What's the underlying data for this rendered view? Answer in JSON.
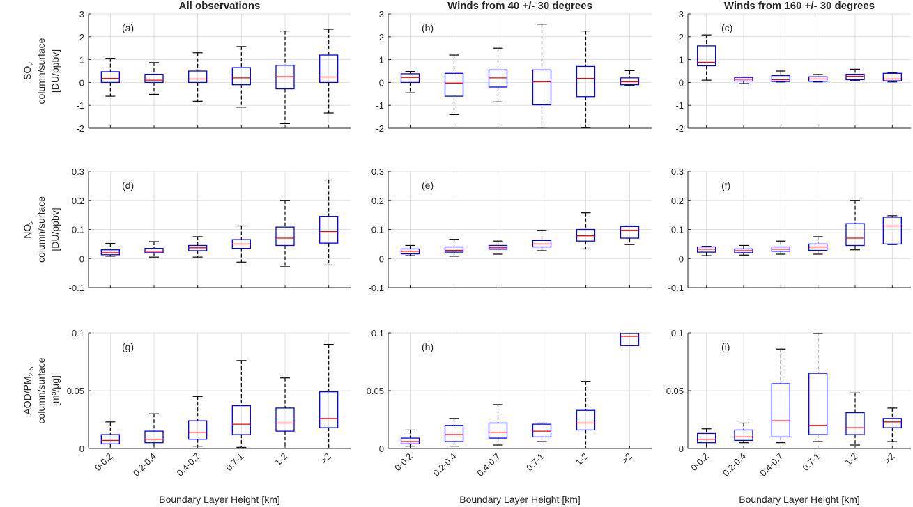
{
  "x_categories": [
    "0-0.2",
    "0.2-0.4",
    "0.4-0.7",
    "0.7-1",
    "1-2",
    ">2"
  ],
  "xlabel": "Boundary Layer Height [km]",
  "column_titles": [
    "All observations",
    "Winds from 40 +/- 30 degrees",
    "Winds from 160 +/- 30 degrees"
  ],
  "row_ylabels": [
    {
      "main": "SO",
      "sub": "2",
      "unit_line": "column/surface",
      "unit2": "[DU/ppbv]"
    },
    {
      "main": "NO",
      "sub": "2",
      "unit_line": "column/surface",
      "unit2": "[DU/ppbv]"
    },
    {
      "main": "AOD/PM",
      "sub": "2.5",
      "unit_line": "column/surface",
      "unit2": "[m³/μg]"
    }
  ],
  "row_yticks": [
    {
      "values": [
        -2,
        -1,
        0,
        1,
        2,
        3
      ],
      "labels": [
        "-2",
        "-1",
        "0",
        "1",
        "2",
        "3"
      ],
      "ylim": [
        -2,
        3
      ]
    },
    {
      "values": [
        -0.1,
        0,
        0.1,
        0.2,
        0.3
      ],
      "labels": [
        "-0.1",
        "0",
        "0.1",
        "0.2",
        "0.3"
      ],
      "ylim": [
        -0.1,
        0.3
      ]
    },
    {
      "values": [
        0,
        0.05,
        0.1
      ],
      "labels": [
        "0",
        "0.05",
        "0.1"
      ],
      "ylim": [
        0,
        0.1
      ]
    }
  ],
  "colors": {
    "box": "#0000ff",
    "median": "#ff0000",
    "whisker": "#000000",
    "grid": "#e0e0e0",
    "axis": "#262626"
  },
  "chart_data": [
    {
      "panel": "(a)",
      "type": "box",
      "title": "All observations",
      "ylim": [
        -2,
        3
      ],
      "categories": [
        "0-0.2",
        "0.2-0.4",
        "0.4-0.7",
        "0.7-1",
        "1-2",
        ">2"
      ],
      "boxes": [
        {
          "min": -0.6,
          "q1": 0.0,
          "median": 0.18,
          "q3": 0.47,
          "max": 1.06
        },
        {
          "min": -0.52,
          "q1": 0.0,
          "median": 0.1,
          "q3": 0.36,
          "max": 0.87
        },
        {
          "min": -0.82,
          "q1": 0.0,
          "median": 0.15,
          "q3": 0.5,
          "max": 1.3
        },
        {
          "min": -1.08,
          "q1": -0.1,
          "median": 0.2,
          "q3": 0.65,
          "max": 1.57
        },
        {
          "min": -1.8,
          "q1": -0.28,
          "median": 0.25,
          "q3": 0.75,
          "max": 2.25
        },
        {
          "min": -1.33,
          "q1": 0.0,
          "median": 0.24,
          "q3": 1.2,
          "max": 2.33
        }
      ]
    },
    {
      "panel": "(b)",
      "type": "box",
      "title": "Winds from 40 +/- 30 degrees",
      "ylim": [
        -2,
        3
      ],
      "categories": [
        "0-0.2",
        "0.2-0.4",
        "0.4-0.7",
        "0.7-1",
        "1-2",
        ">2"
      ],
      "boxes": [
        {
          "min": -0.45,
          "q1": 0.0,
          "median": 0.22,
          "q3": 0.38,
          "max": 0.48
        },
        {
          "min": -1.4,
          "q1": -0.6,
          "median": -0.03,
          "q3": 0.4,
          "max": 1.2
        },
        {
          "min": -0.85,
          "q1": -0.2,
          "median": 0.2,
          "q3": 0.55,
          "max": 1.5
        },
        {
          "min": -2.0,
          "q1": -0.98,
          "median": 0.03,
          "q3": 0.55,
          "max": 2.55
        },
        {
          "min": -1.97,
          "q1": -0.62,
          "median": 0.18,
          "q3": 0.7,
          "max": 2.25
        },
        {
          "min": -0.12,
          "q1": -0.1,
          "median": 0.03,
          "q3": 0.2,
          "max": 0.52
        }
      ]
    },
    {
      "panel": "(c)",
      "type": "box",
      "title": "Winds from 160 +/- 30 degrees",
      "ylim": [
        -2,
        3
      ],
      "categories": [
        "0-0.2",
        "0.2-0.4",
        "0.4-0.7",
        "0.7-1",
        "1-2",
        ">2"
      ],
      "boxes": [
        {
          "min": 0.1,
          "q1": 0.73,
          "median": 0.88,
          "q3": 1.6,
          "max": 2.08
        },
        {
          "min": -0.05,
          "q1": 0.06,
          "median": 0.14,
          "q3": 0.22,
          "max": 0.24
        },
        {
          "min": 0.02,
          "q1": 0.04,
          "median": 0.12,
          "q3": 0.3,
          "max": 0.5
        },
        {
          "min": 0.02,
          "q1": 0.05,
          "median": 0.15,
          "q3": 0.25,
          "max": 0.35
        },
        {
          "min": 0.08,
          "q1": 0.12,
          "median": 0.27,
          "q3": 0.36,
          "max": 0.58
        },
        {
          "min": 0.02,
          "q1": 0.07,
          "median": 0.15,
          "q3": 0.4,
          "max": 0.42
        }
      ]
    },
    {
      "panel": "(d)",
      "type": "box",
      "title": "",
      "ylim": [
        -0.1,
        0.3
      ],
      "categories": [
        "0-0.2",
        "0.2-0.4",
        "0.4-0.7",
        "0.7-1",
        "1-2",
        ">2"
      ],
      "boxes": [
        {
          "min": 0.008,
          "q1": 0.013,
          "median": 0.02,
          "q3": 0.03,
          "max": 0.052
        },
        {
          "min": 0.005,
          "q1": 0.02,
          "median": 0.025,
          "q3": 0.035,
          "max": 0.058
        },
        {
          "min": 0.005,
          "q1": 0.027,
          "median": 0.037,
          "q3": 0.045,
          "max": 0.075
        },
        {
          "min": -0.012,
          "q1": 0.035,
          "median": 0.05,
          "q3": 0.065,
          "max": 0.112
        },
        {
          "min": -0.028,
          "q1": 0.045,
          "median": 0.07,
          "q3": 0.108,
          "max": 0.2
        },
        {
          "min": -0.022,
          "q1": 0.053,
          "median": 0.093,
          "q3": 0.145,
          "max": 0.27
        }
      ]
    },
    {
      "panel": "(e)",
      "type": "box",
      "title": "",
      "ylim": [
        -0.1,
        0.3
      ],
      "categories": [
        "0-0.2",
        "0.2-0.4",
        "0.4-0.7",
        "0.7-1",
        "1-2",
        ">2"
      ],
      "boxes": [
        {
          "min": 0.01,
          "q1": 0.016,
          "median": 0.025,
          "q3": 0.033,
          "max": 0.045
        },
        {
          "min": 0.008,
          "q1": 0.022,
          "median": 0.028,
          "q3": 0.04,
          "max": 0.066
        },
        {
          "min": 0.015,
          "q1": 0.032,
          "median": 0.037,
          "q3": 0.045,
          "max": 0.06
        },
        {
          "min": 0.027,
          "q1": 0.04,
          "median": 0.05,
          "q3": 0.062,
          "max": 0.097
        },
        {
          "min": 0.033,
          "q1": 0.06,
          "median": 0.078,
          "q3": 0.1,
          "max": 0.157
        },
        {
          "min": 0.048,
          "q1": 0.07,
          "median": 0.097,
          "q3": 0.11,
          "max": 0.112
        }
      ]
    },
    {
      "panel": "(f)",
      "type": "box",
      "title": "",
      "ylim": [
        -0.1,
        0.3
      ],
      "categories": [
        "0-0.2",
        "0.2-0.4",
        "0.4-0.7",
        "0.7-1",
        "1-2",
        ">2"
      ],
      "boxes": [
        {
          "min": 0.01,
          "q1": 0.022,
          "median": 0.032,
          "q3": 0.04,
          "max": 0.042
        },
        {
          "min": 0.012,
          "q1": 0.02,
          "median": 0.027,
          "q3": 0.033,
          "max": 0.045
        },
        {
          "min": 0.015,
          "q1": 0.025,
          "median": 0.032,
          "q3": 0.04,
          "max": 0.06
        },
        {
          "min": 0.015,
          "q1": 0.028,
          "median": 0.04,
          "q3": 0.05,
          "max": 0.075
        },
        {
          "min": 0.03,
          "q1": 0.045,
          "median": 0.07,
          "q3": 0.12,
          "max": 0.2
        },
        {
          "min": 0.048,
          "q1": 0.05,
          "median": 0.112,
          "q3": 0.142,
          "max": 0.147
        }
      ]
    },
    {
      "panel": "(g)",
      "type": "box",
      "title": "",
      "ylim": [
        0,
        0.1
      ],
      "categories": [
        "0-0.2",
        "0.2-0.4",
        "0.4-0.7",
        "0.7-1",
        "1-2",
        ">2"
      ],
      "boxes": [
        {
          "min": 0.0,
          "q1": 0.004,
          "median": 0.007,
          "q3": 0.012,
          "max": 0.023
        },
        {
          "min": 0.0,
          "q1": 0.005,
          "median": 0.008,
          "q3": 0.015,
          "max": 0.03
        },
        {
          "min": 0.002,
          "q1": 0.008,
          "median": 0.014,
          "q3": 0.024,
          "max": 0.045
        },
        {
          "min": 0.001,
          "q1": 0.012,
          "median": 0.021,
          "q3": 0.037,
          "max": 0.076
        },
        {
          "min": 0.0,
          "q1": 0.015,
          "median": 0.022,
          "q3": 0.035,
          "max": 0.061
        },
        {
          "min": 0.0,
          "q1": 0.018,
          "median": 0.026,
          "q3": 0.049,
          "max": 0.09
        }
      ]
    },
    {
      "panel": "(h)",
      "type": "box",
      "title": "",
      "ylim": [
        0,
        0.1
      ],
      "categories": [
        "0-0.2",
        "0.2-0.4",
        "0.4-0.7",
        "0.7-1",
        "1-2",
        ">2"
      ],
      "boxes": [
        {
          "min": 0.002,
          "q1": 0.004,
          "median": 0.006,
          "q3": 0.009,
          "max": 0.016
        },
        {
          "min": 0.002,
          "q1": 0.006,
          "median": 0.012,
          "q3": 0.02,
          "max": 0.026
        },
        {
          "min": 0.003,
          "q1": 0.009,
          "median": 0.014,
          "q3": 0.022,
          "max": 0.038
        },
        {
          "min": 0.006,
          "q1": 0.01,
          "median": 0.015,
          "q3": 0.021,
          "max": 0.022
        },
        {
          "min": 0.0,
          "q1": 0.016,
          "median": 0.022,
          "q3": 0.033,
          "max": 0.058
        },
        {
          "min": 0.089,
          "q1": 0.089,
          "median": 0.097,
          "q3": 0.1,
          "max": 0.1
        }
      ]
    },
    {
      "panel": "(i)",
      "type": "box",
      "title": "",
      "ylim": [
        0,
        0.1
      ],
      "categories": [
        "0-0.2",
        "0.2-0.4",
        "0.4-0.7",
        "0.7-1",
        "1-2",
        ">2"
      ],
      "boxes": [
        {
          "min": 0.0,
          "q1": 0.005,
          "median": 0.008,
          "q3": 0.013,
          "max": 0.017
        },
        {
          "min": 0.005,
          "q1": 0.007,
          "median": 0.01,
          "q3": 0.016,
          "max": 0.022
        },
        {
          "min": 0.005,
          "q1": 0.01,
          "median": 0.024,
          "q3": 0.056,
          "max": 0.086
        },
        {
          "min": 0.006,
          "q1": 0.012,
          "median": 0.02,
          "q3": 0.065,
          "max": 0.1
        },
        {
          "min": 0.003,
          "q1": 0.012,
          "median": 0.018,
          "q3": 0.031,
          "max": 0.048
        },
        {
          "min": 0.006,
          "q1": 0.018,
          "median": 0.023,
          "q3": 0.026,
          "max": 0.035
        }
      ]
    }
  ]
}
